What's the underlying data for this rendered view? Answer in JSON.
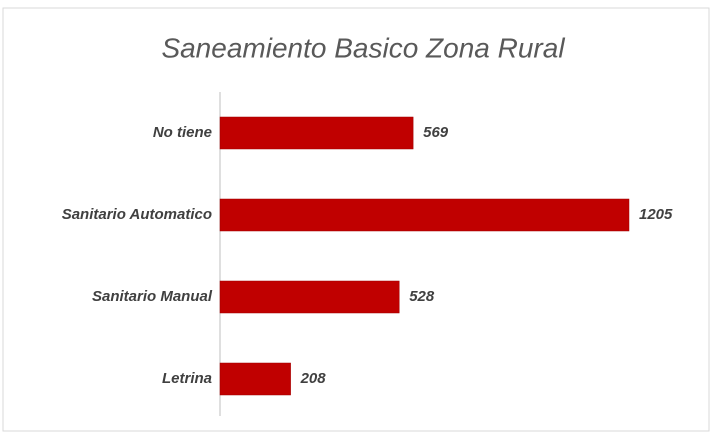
{
  "chart_data": {
    "type": "bar",
    "orientation": "horizontal",
    "title": "Saneamiento Basico Zona Rural",
    "categories": [
      "No tiene",
      "Sanitario Automatico",
      "Sanitario Manual",
      "Letrina"
    ],
    "values": [
      569,
      1205,
      528,
      208
    ],
    "color": "#c00000"
  }
}
